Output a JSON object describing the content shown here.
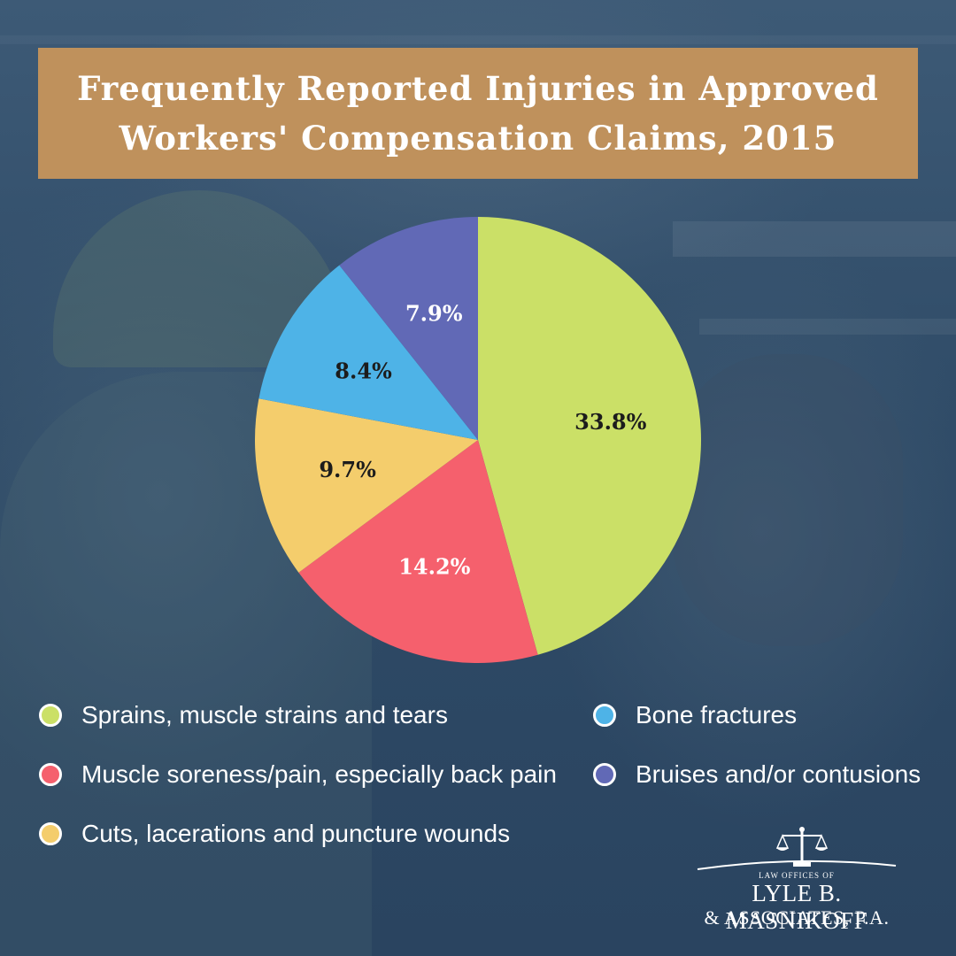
{
  "chart_data": {
    "type": "pie",
    "title": "Frequently Reported Injuries in Approved\nWorkers' Compensation Claims, 2015",
    "slices": [
      {
        "name": "Sprains, muscle strains and tears",
        "value": 33.8,
        "label": "33.8%",
        "color": "#cbe067",
        "label_color": "#1c1c1c"
      },
      {
        "name": "Muscle soreness/pain, especially back pain",
        "value": 14.2,
        "label": "14.2%",
        "color": "#f5606d",
        "label_color": "#ffffff"
      },
      {
        "name": "Cuts, lacerations and puncture wounds",
        "value": 9.7,
        "label": "9.7%",
        "color": "#f4cd6c",
        "label_color": "#1c1c1c"
      },
      {
        "name": "Bone fractures",
        "value": 8.4,
        "label": "8.4%",
        "color": "#4eb3e7",
        "label_color": "#1c1c1c"
      },
      {
        "name": "Bruises and/or contusions",
        "value": 7.9,
        "label": "7.9%",
        "color": "#6169b6",
        "label_color": "#ffffff"
      }
    ],
    "legend": [
      {
        "label": "Sprains, muscle strains and tears",
        "color": "#cbe067"
      },
      {
        "label": "Bone fractures",
        "color": "#4eb3e7"
      },
      {
        "label": "Muscle soreness/pain, especially back pain",
        "color": "#f5606d"
      },
      {
        "label": "Bruises and/or contusions",
        "color": "#6169b6"
      },
      {
        "label": "Cuts, lacerations and puncture wounds",
        "color": "#f4cd6c"
      }
    ],
    "legend_placement": "bottom"
  },
  "logo": {
    "small_text": "LAW OFFICES OF",
    "name": "LYLE B. MASNIKOFF",
    "associates": "& ASSOCIATES, P.A."
  },
  "colors": {
    "title_banner": "#bf915c",
    "background": "#2c4763"
  }
}
